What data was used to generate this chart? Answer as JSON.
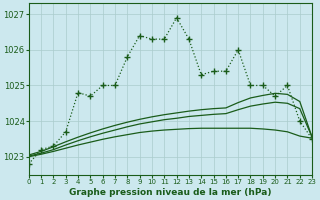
{
  "title": "Graphe pression niveau de la mer (hPa)",
  "bg_color": "#cce8ee",
  "grid_color": "#aacccc",
  "line_color": "#1a5c1a",
  "xlim": [
    0,
    23
  ],
  "ylim": [
    1022.5,
    1027.3
  ],
  "yticks": [
    1023,
    1024,
    1025,
    1026,
    1027
  ],
  "xticks": [
    0,
    1,
    2,
    3,
    4,
    5,
    6,
    7,
    8,
    9,
    10,
    11,
    12,
    13,
    14,
    15,
    16,
    17,
    18,
    19,
    20,
    21,
    22,
    23
  ],
  "main_series": [
    1022.8,
    1023.2,
    1023.3,
    1023.7,
    1024.8,
    1024.7,
    1025.0,
    1025.0,
    1025.8,
    1026.4,
    1026.3,
    1026.3,
    1026.9,
    1026.3,
    1025.3,
    1025.4,
    1025.4,
    1026.0,
    1025.0,
    1025.0,
    1024.7,
    1025.0,
    1024.0,
    1023.5
  ],
  "smooth_top": [
    1023.05,
    1023.15,
    1023.28,
    1023.42,
    1023.55,
    1023.67,
    1023.78,
    1023.88,
    1023.97,
    1024.05,
    1024.12,
    1024.18,
    1024.23,
    1024.28,
    1024.32,
    1024.35,
    1024.37,
    1024.52,
    1024.65,
    1024.72,
    1024.78,
    1024.75,
    1024.55,
    1023.55
  ],
  "smooth_mid": [
    1023.02,
    1023.1,
    1023.2,
    1023.33,
    1023.45,
    1023.56,
    1023.66,
    1023.75,
    1023.84,
    1023.92,
    1023.98,
    1024.04,
    1024.08,
    1024.13,
    1024.16,
    1024.19,
    1024.21,
    1024.32,
    1024.42,
    1024.48,
    1024.53,
    1024.5,
    1024.35,
    1023.55
  ],
  "smooth_bot": [
    1023.0,
    1023.07,
    1023.15,
    1023.24,
    1023.33,
    1023.41,
    1023.49,
    1023.56,
    1023.62,
    1023.68,
    1023.72,
    1023.75,
    1023.77,
    1023.79,
    1023.8,
    1023.8,
    1023.8,
    1023.8,
    1023.8,
    1023.78,
    1023.75,
    1023.7,
    1023.58,
    1023.52
  ]
}
